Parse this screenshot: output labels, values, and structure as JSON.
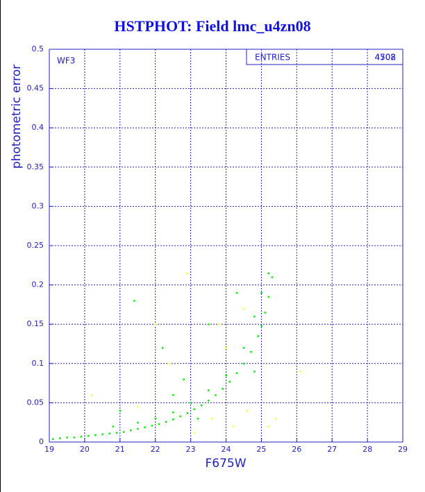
{
  "chart_data": {
    "type": "scatter",
    "title": "HSTPHOT: Field lmc_u4zn08",
    "x_label": "F675W",
    "y_label": "photometric error",
    "annotation": "WF3",
    "stats": {
      "label": "ENTRIES",
      "values": [
        "4508",
        "4702"
      ]
    },
    "xlim": [
      19,
      29
    ],
    "ylim": [
      0,
      0.5
    ],
    "xticks": [
      19,
      20,
      21,
      22,
      23,
      24,
      25,
      26,
      27,
      28,
      29
    ],
    "yticks": [
      0,
      0.05,
      0.1,
      0.15,
      0.2,
      0.25,
      0.3,
      0.35,
      0.4,
      0.45,
      0.5
    ],
    "grid": true,
    "series": [
      {
        "color": "#ffff33",
        "x": [
          20.2,
          21.5,
          22.4,
          22.9,
          23.6,
          24.2,
          24.6,
          25.2,
          25.4,
          26.1,
          23.8,
          24.5,
          22.0,
          23.1,
          24.0
        ],
        "y": [
          0.06,
          0.045,
          0.1,
          0.215,
          0.03,
          0.02,
          0.04,
          0.02,
          0.03,
          0.09,
          0.15,
          0.17,
          0.15,
          0.012,
          0.12
        ]
      },
      {
        "color": "#00ee00",
        "x": [
          19.1,
          19.3,
          19.5,
          19.7,
          19.9,
          20.1,
          20.3,
          20.5,
          20.7,
          20.9,
          21.1,
          21.3,
          21.5,
          21.7,
          21.9,
          22.1,
          22.3,
          22.5,
          22.7,
          22.9,
          23.1,
          23.3,
          23.5,
          23.7,
          23.9,
          24.1,
          24.3,
          24.5,
          24.7,
          24.9,
          25.0,
          25.1,
          25.2,
          25.3,
          21.5,
          22.0,
          22.5,
          23.0,
          23.5,
          24.0,
          24.5,
          24.8,
          25.0,
          25.2,
          21.4,
          22.2,
          23.5,
          21.0,
          22.8,
          24.3,
          20.8,
          23.2,
          24.8,
          22.5
        ],
        "y": [
          0.004,
          0.005,
          0.006,
          0.006,
          0.007,
          0.008,
          0.009,
          0.01,
          0.011,
          0.012,
          0.013,
          0.015,
          0.017,
          0.019,
          0.021,
          0.023,
          0.026,
          0.029,
          0.033,
          0.037,
          0.042,
          0.047,
          0.053,
          0.06,
          0.068,
          0.077,
          0.088,
          0.1,
          0.115,
          0.135,
          0.148,
          0.165,
          0.185,
          0.21,
          0.025,
          0.03,
          0.038,
          0.05,
          0.066,
          0.085,
          0.12,
          0.16,
          0.19,
          0.215,
          0.18,
          0.12,
          0.15,
          0.04,
          0.08,
          0.19,
          0.02,
          0.03,
          0.09,
          0.06
        ]
      }
    ]
  }
}
